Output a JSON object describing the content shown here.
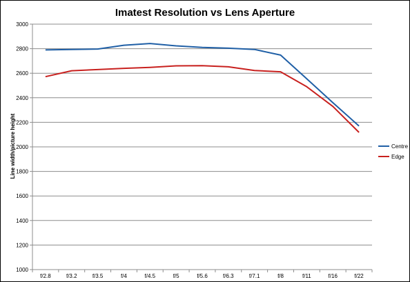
{
  "chart_data": {
    "type": "line",
    "title": "Imatest Resolution vs Lens Aperture",
    "xlabel": "",
    "ylabel": "Line width/picture height",
    "categories": [
      "f/2.8",
      "f/3.2",
      "f/3.5",
      "f/4",
      "f/4.5",
      "f/5",
      "f/5.6",
      "f/6.3",
      "f/7.1",
      "f/8",
      "f/11",
      "f/16",
      "f/22"
    ],
    "ylim": [
      1000,
      3000
    ],
    "yticks": [
      1000,
      1200,
      1400,
      1600,
      1800,
      2000,
      2200,
      2400,
      2600,
      2800,
      3000
    ],
    "grid": true,
    "legend_position": "right",
    "series": [
      {
        "name": "Centre",
        "color": "#1f5fa6",
        "values": [
          2790,
          2793,
          2797,
          2828,
          2842,
          2823,
          2810,
          2804,
          2794,
          2748,
          2555,
          2360,
          2170
        ]
      },
      {
        "name": "Edge",
        "color": "#c8201e",
        "values": [
          2572,
          2620,
          2630,
          2640,
          2648,
          2660,
          2662,
          2652,
          2622,
          2612,
          2490,
          2330,
          2118
        ]
      }
    ]
  }
}
